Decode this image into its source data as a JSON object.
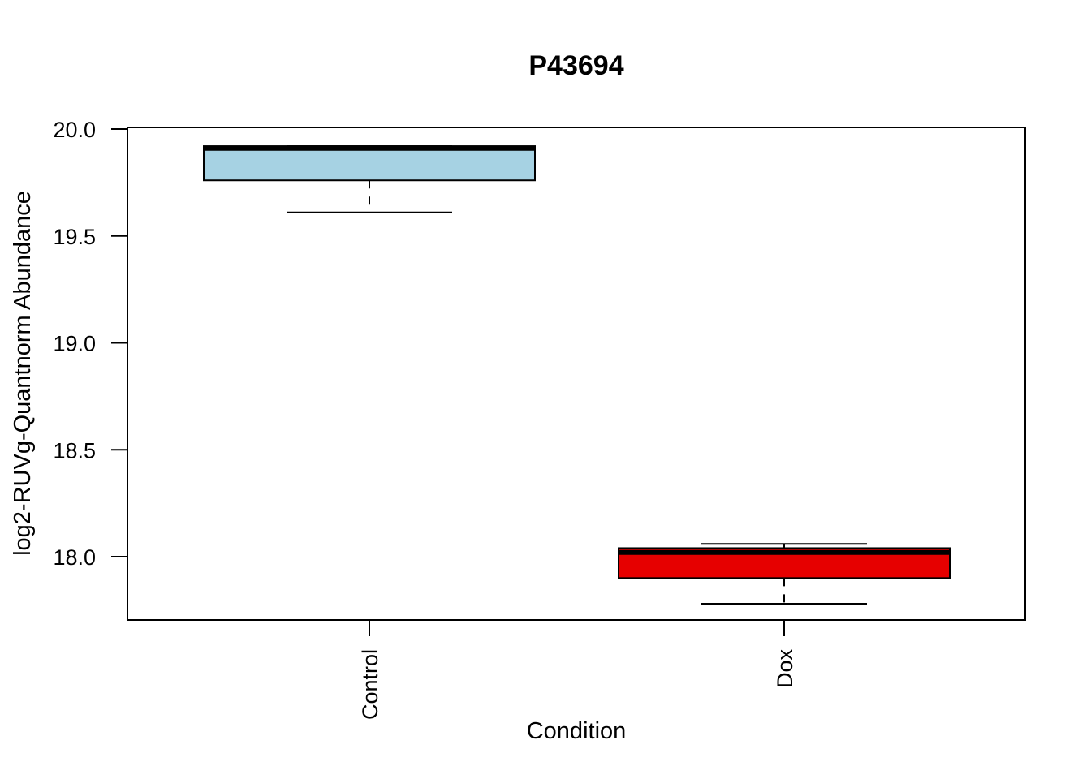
{
  "chart_data": {
    "type": "box",
    "title": "P43694",
    "xlabel": "Condition",
    "ylabel": "log2-RUVg-Quantnorm Abundance",
    "ylim": [
      17.7,
      20.0
    ],
    "yticks": [
      "18.0",
      "18.5",
      "19.0",
      "19.5",
      "20.0"
    ],
    "categories": [
      "Control",
      "Dox"
    ],
    "boxes": [
      {
        "label": "Control",
        "whisker_low": 19.61,
        "q1": 19.76,
        "median": 19.91,
        "q3": 19.92,
        "whisker_high": 19.92,
        "color": "#a6d2e3"
      },
      {
        "label": "Dox",
        "whisker_low": 17.78,
        "q1": 17.9,
        "median": 18.02,
        "q3": 18.04,
        "whisker_high": 18.06,
        "color": "#e60000"
      }
    ],
    "grid": false,
    "legend": false
  }
}
